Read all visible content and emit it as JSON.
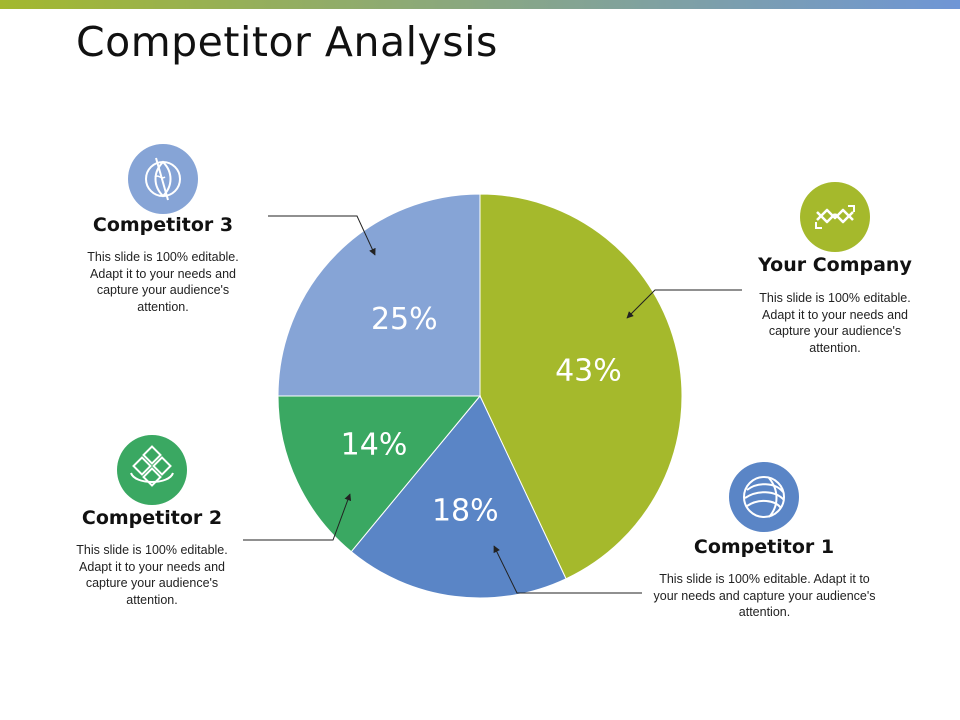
{
  "title": "Competitor Analysis",
  "colors": {
    "bar_start": "#a3b82e",
    "bar_end": "#6f96d6",
    "your_company": "#a5b92c",
    "competitor_1": "#5a85c6",
    "competitor_2": "#3aa862",
    "competitor_3": "#86a4d6"
  },
  "chart_data": {
    "type": "pie",
    "title": "",
    "slices": [
      {
        "name": "Your Company",
        "value": 43,
        "label": "43%",
        "color": "#a5b92c"
      },
      {
        "name": "Competitor 1",
        "value": 18,
        "label": "18%",
        "color": "#5a85c6"
      },
      {
        "name": "Competitor 2",
        "value": 14,
        "label": "14%",
        "color": "#3aa862"
      },
      {
        "name": "Competitor 3",
        "value": 25,
        "label": "25%",
        "color": "#86a4d6"
      }
    ],
    "start": "top",
    "direction": "clockwise"
  },
  "callouts": {
    "your_company": {
      "title": "Your Company",
      "desc": "This slide is 100% editable. Adapt it to your needs and capture your audience's attention.",
      "icon": "arrows-exchange-icon"
    },
    "competitor_1": {
      "title": "Competitor 1",
      "desc": "This slide is 100% editable. Adapt it to your needs and capture your audience's attention.",
      "icon": "globe-swirl-icon"
    },
    "competitor_2": {
      "title": "Competitor 2",
      "desc": "This slide is 100% editable. Adapt it to your needs and capture your audience's attention.",
      "icon": "diamond-cubes-icon"
    },
    "competitor_3": {
      "title": "Competitor 3",
      "desc": "This slide is 100% editable. Adapt it to your needs and capture your audience's attention.",
      "icon": "leaf-circle-icon"
    }
  }
}
